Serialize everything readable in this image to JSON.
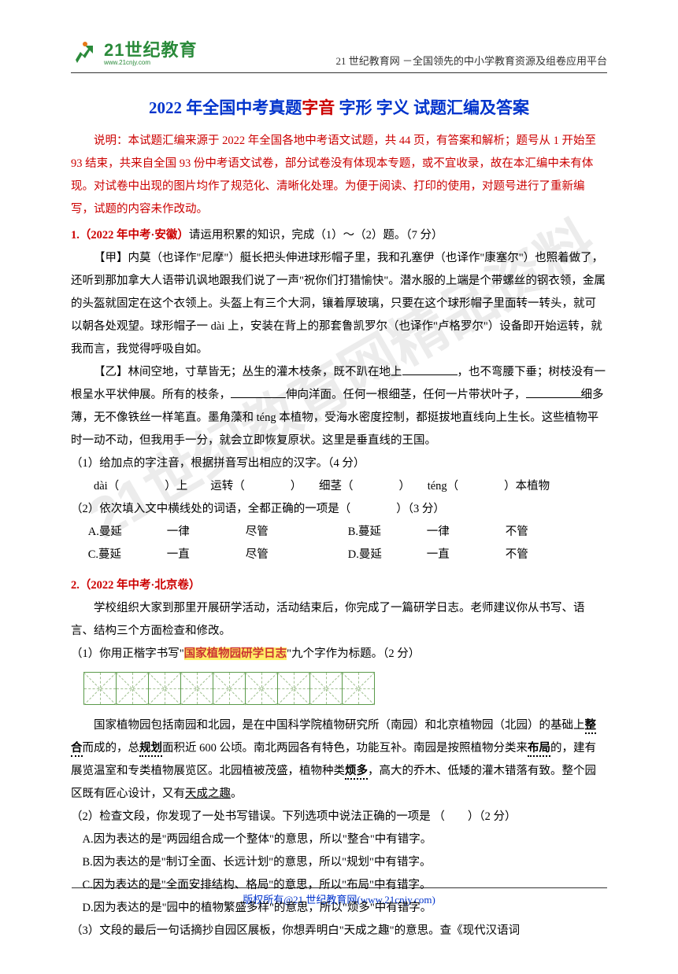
{
  "header": {
    "logo_main": "21世纪教育",
    "logo_sub": "www.21cnjy.com",
    "right_text": "21 世纪教育网 －全国领先的中小学教育资源及组卷应用平台"
  },
  "title": {
    "p1": "2022 年全国中考真题",
    "p2": "字音",
    "p3": "  字形  字义",
    "p4": "  试题汇编及答案"
  },
  "intro": "说明：本试题汇编来源于 2022 年全国各地中考语文试题，共 44 页，有答案和解析；题号从 1 开始至 93 结束，共来自全国 93 份中考语文试卷，部分试卷没有体现本专题，或不宜收录，故在本汇编中未有体现。对试卷中出现的图片均作了规范化、清晰化处理。为便于阅读、打印的使用，对题号进行了重新编写，试题的内容未作改动。",
  "q1": {
    "num": "1.",
    "src": "（2022 年中考·安徽）",
    "lead": "请运用积累的知识，完成（1）～（2）题。（7 分）",
    "jia": "【甲】内莫（也译作\"尼摩\"）艇长把头伸进球形帽子里，我和孔塞伊（也译作\"康塞尔\"）也照着做了，还听到那加拿大人语带讥讽地跟我们说了一声\"祝你们打猎愉快\"。潜水服的上端是个带螺丝的钢衣领，金属的头盔就固定在这个衣领上。头盔上有三个大洞，镶着厚玻璃，只要在这个球形帽子里面转一转头，就可以朝各处观望。球形帽子一 dài 上，安装在背上的那套鲁凯罗尔（也译作\"卢格罗尔\"）设备即开始运转，就我而言，我觉得呼吸自如。",
    "yi_p1": "【乙】林间空地，寸草皆无；丛生的灌木枝条，既不趴在地上",
    "yi_p2": "，也不弯腰下垂；树枝没有一根呈水平状伸展。所有的枝条，",
    "yi_p3": "伸向洋面。任何一根细茎，任何一片带状叶子，",
    "yi_p4": "细多薄，无不像铁丝一样笔直。墨角藻和 téng 本植物，受海水密度控制，都挺拔地直线向上生长。这些植物平时一动不动，但我用手一分，就会立即恢复原状。这里是垂直线的王国。",
    "sub1_lead": "（1）给加点的字注音，根据拼音写出相应的汉字。（4 分）",
    "sub1_items": "　　dài（　　　　）上　　运转（　　　　）　　细茎（　　　　）　　téng（　　　　）本植物",
    "sub2_lead": "（2）依次填入文中横线处的词语，全都正确的一项是（　　　　）（3 分）",
    "opts": {
      "A": {
        "a": "A.曼延",
        "b": "一律",
        "c": "尽管",
        "d": "B.蔓延",
        "e": "一律",
        "f": "不管"
      },
      "C": {
        "a": "C.蔓延",
        "b": "一直",
        "c": "尽管",
        "d": "D.曼延",
        "e": "一直",
        "f": "不管"
      }
    }
  },
  "q2": {
    "num": "2.",
    "src": "（2022 年中考·北京卷）",
    "lead": "学校组织大家到那里开展研学活动，活动结束后，你完成了一篇研学日志。老师建议你从书写、语言、结构三个方面检查和修改。",
    "sub1_a": "（1）你用正楷字书写\"",
    "sub1_hl": "国家植物园研学日志",
    "sub1_b": "\"九个字作为标题。（2 分）",
    "grid_count": 9,
    "body_p1a": "国家植物园包括南园和北园，是在中国科学院植物研究所（南园）和北京植物园（北园）的基础上",
    "body_w1": "整合",
    "body_p1b": "而成的，总",
    "body_w2": "规划",
    "body_p1c": "面积近 600 公顷。南北两园各有特色，功能互补。南园是按照植物分类来",
    "body_w3": "布局",
    "body_p1d": "的，建有展览温室和专类植物展览区。北园植被茂盛，植物种类",
    "body_w4": "烦多",
    "body_p1e": "，高大的乔木、低矮的灌木错落有致。整个园区既有匠心设计，又有",
    "body_u": "天成之趣",
    "body_p1f": "。",
    "sub2_lead": "（2）检查文段，你发现了一处书写错误。下列选项中说法正确的一项是 （　　）（2 分）",
    "sub2_A": "A.因为表达的是\"两园组合成一个整体\"的意思，所以\"整合\"中有错字。",
    "sub2_B": "B.因为表达的是\"制订全面、长远计划\"的意思，所以\"规划\"中有错字。",
    "sub2_C": "C.因为表达的是\"全面安排结构、格局\"的意思，所以\"布局\"中有错字。",
    "sub2_D": "D.因为表达的是\"园中的植物繁盛多样\"的意思，所以\"烦多\"中有错字。",
    "sub3": "（3）文段的最后一句话摘抄自园区展板，你想弄明白\"天成之趣\"的意思。查《现代汉语词"
  },
  "footer": {
    "text": "版权所有@21 世纪教育网(www.21cnjy.com)"
  },
  "watermark": "21世纪教育网精品资料"
}
